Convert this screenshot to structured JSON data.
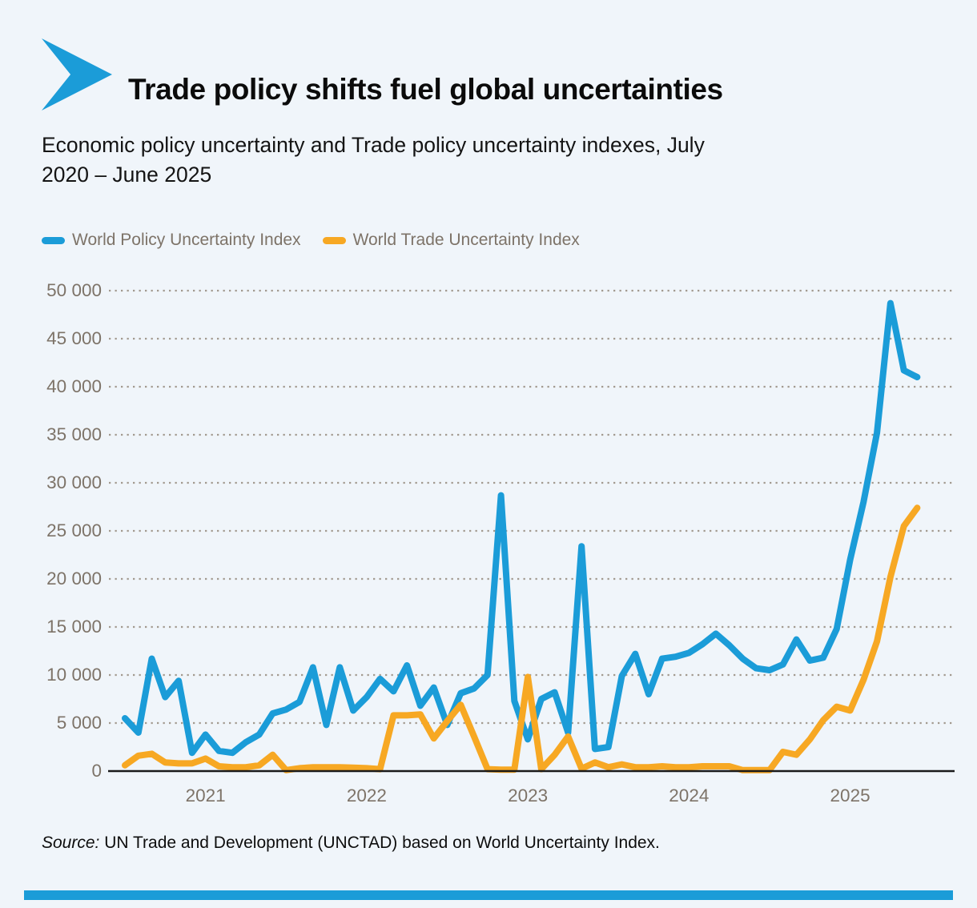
{
  "header": {
    "title": "Trade policy shifts fuel global uncertainties",
    "subtitle_line1": "Economic policy uncertainty and Trade policy uncertainty indexes, July",
    "subtitle_line2": "2020 – June 2025"
  },
  "legend": {
    "items": [
      {
        "label": "World Policy Uncertainty Index",
        "color": "#1b9cd8"
      },
      {
        "label": "World Trade Uncertainty Index",
        "color": "#f7a823"
      }
    ]
  },
  "source": {
    "prefix": "Source:",
    "text": " UN Trade and Development (UNCTAD) based on World Uncertainty Index."
  },
  "colors": {
    "accent_blue": "#1b9cd8",
    "accent_orange": "#f7a823",
    "background": "#f0f5fa",
    "grid_dots": "#a39a90",
    "axis_line": "#1a1a1a",
    "muted_text": "#7d7368"
  },
  "chart_data": {
    "type": "line",
    "title": "Economic policy uncertainty and Trade policy uncertainty indexes, July 2020 – June 2025",
    "xlabel": "",
    "ylabel": "",
    "ylim": [
      0,
      50000
    ],
    "grid": "dotted horizontal",
    "legend_position": "top-left",
    "x": [
      "Jul 2020",
      "Aug 2020",
      "Sep 2020",
      "Oct 2020",
      "Nov 2020",
      "Dec 2020",
      "Jan 2021",
      "Feb 2021",
      "Mar 2021",
      "Apr 2021",
      "May 2021",
      "Jun 2021",
      "Jul 2021",
      "Aug 2021",
      "Sep 2021",
      "Oct 2021",
      "Nov 2021",
      "Dec 2021",
      "Jan 2022",
      "Feb 2022",
      "Mar 2022",
      "Apr 2022",
      "May 2022",
      "Jun 2022",
      "Jul 2022",
      "Aug 2022",
      "Sep 2022",
      "Oct 2022",
      "Nov 2022",
      "Dec 2022",
      "Jan 2023",
      "Feb 2023",
      "Mar 2023",
      "Apr 2023",
      "May 2023",
      "Jun 2023",
      "Jul 2023",
      "Aug 2023",
      "Sep 2023",
      "Oct 2023",
      "Nov 2023",
      "Dec 2023",
      "Jan 2024",
      "Feb 2024",
      "Mar 2024",
      "Apr 2024",
      "May 2024",
      "Jun 2024",
      "Jul 2024",
      "Aug 2024",
      "Sep 2024",
      "Oct 2024",
      "Nov 2024",
      "Dec 2024",
      "Jan 2025",
      "Feb 2025",
      "Mar 2025",
      "Apr 2025",
      "May 2025",
      "Jun 2025"
    ],
    "series": [
      {
        "name": "World Policy Uncertainty Index",
        "color": "#1b9cd8",
        "values": [
          5500,
          4000,
          11700,
          7700,
          9400,
          1900,
          3800,
          2100,
          1900,
          3000,
          3800,
          6000,
          6400,
          7200,
          10800,
          4800,
          10800,
          6300,
          7700,
          9600,
          8300,
          11000,
          6800,
          8700,
          4800,
          8100,
          8600,
          10000,
          28700,
          7300,
          3300,
          7500,
          8200,
          4000,
          23400,
          2300,
          2500,
          9900,
          12200,
          8000,
          11700,
          11900,
          12300,
          13200,
          14300,
          13100,
          11700,
          10700,
          10500,
          11100,
          13700,
          11500,
          11800,
          14800,
          22000,
          28000,
          35200,
          48700,
          41700,
          41000
        ]
      },
      {
        "name": "World Trade Uncertainty Index",
        "color": "#f7a823",
        "values": [
          600,
          1600,
          1800,
          900,
          800,
          800,
          1300,
          500,
          400,
          400,
          600,
          1700,
          100,
          300,
          400,
          400,
          400,
          350,
          300,
          200,
          5800,
          5800,
          5900,
          3400,
          5200,
          6900,
          3600,
          200,
          150,
          150,
          9800,
          200,
          1700,
          3600,
          250,
          900,
          400,
          700,
          400,
          400,
          500,
          400,
          400,
          500,
          500,
          500,
          100,
          100,
          100,
          2000,
          1700,
          3300,
          5300,
          6700,
          6300,
          9500,
          13500,
          20200,
          25500,
          27400
        ]
      }
    ],
    "y_ticks": [
      {
        "value": 0,
        "label": "0"
      },
      {
        "value": 5000,
        "label": "5 000"
      },
      {
        "value": 10000,
        "label": "10 000"
      },
      {
        "value": 15000,
        "label": "15 000"
      },
      {
        "value": 20000,
        "label": "20 000"
      },
      {
        "value": 25000,
        "label": "25 000"
      },
      {
        "value": 30000,
        "label": "30 000"
      },
      {
        "value": 35000,
        "label": "35 000"
      },
      {
        "value": 40000,
        "label": "40 000"
      },
      {
        "value": 45000,
        "label": "45 000"
      },
      {
        "value": 50000,
        "label": "50 000"
      }
    ],
    "x_ticks": [
      {
        "label": "2021",
        "month_index": 6
      },
      {
        "label": "2022",
        "month_index": 18
      },
      {
        "label": "2023",
        "month_index": 30
      },
      {
        "label": "2024",
        "month_index": 42
      },
      {
        "label": "2025",
        "month_index": 54
      }
    ]
  }
}
